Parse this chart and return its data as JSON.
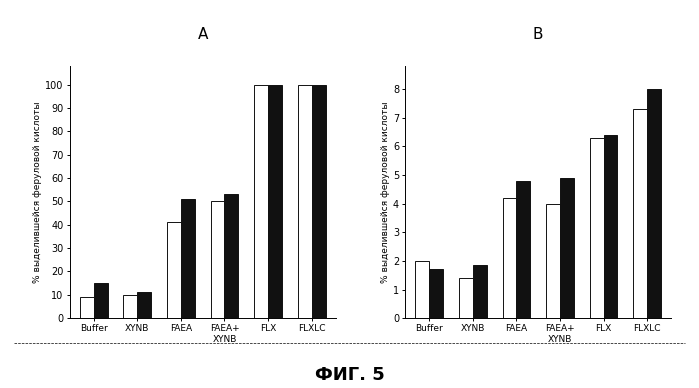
{
  "panel_A": {
    "title": "A",
    "categories": [
      "Buffer",
      "XYNB",
      "FAEA",
      "FAEA+\nXYNB",
      "FLX",
      "FLXLC"
    ],
    "white_bars": [
      9,
      10,
      41,
      50,
      100,
      100
    ],
    "black_bars": [
      15,
      11,
      51,
      53,
      100,
      100
    ],
    "ylabel": "% выделившейся феруловой кислоты",
    "ylim": [
      0,
      108
    ],
    "yticks": [
      0,
      10,
      20,
      30,
      40,
      50,
      60,
      70,
      80,
      90,
      100
    ]
  },
  "panel_B": {
    "title": "B",
    "categories": [
      "Buffer",
      "XYNB",
      "FAEA",
      "FAEA+\nXYNB",
      "FLX",
      "FLXLC"
    ],
    "white_bars": [
      2.0,
      1.4,
      4.2,
      4.0,
      6.3,
      7.3
    ],
    "black_bars": [
      1.7,
      1.85,
      4.8,
      4.9,
      6.4,
      8.0
    ],
    "ylabel": "% выделившейся феруловой кислоты",
    "ylim": [
      0,
      8.8
    ],
    "yticks": [
      0,
      1,
      2,
      3,
      4,
      5,
      6,
      7,
      8
    ]
  },
  "fig_label": "ФИГ. 5",
  "white_color": "#ffffff",
  "black_color": "#111111",
  "bar_edge_color": "#111111",
  "background_color": "#ffffff",
  "bar_width": 0.32,
  "panel_title_fontsize": 11,
  "ylabel_fontsize": 6.5,
  "tick_fontsize": 7,
  "xtick_fontsize": 6.5,
  "fig_label_fontsize": 13
}
